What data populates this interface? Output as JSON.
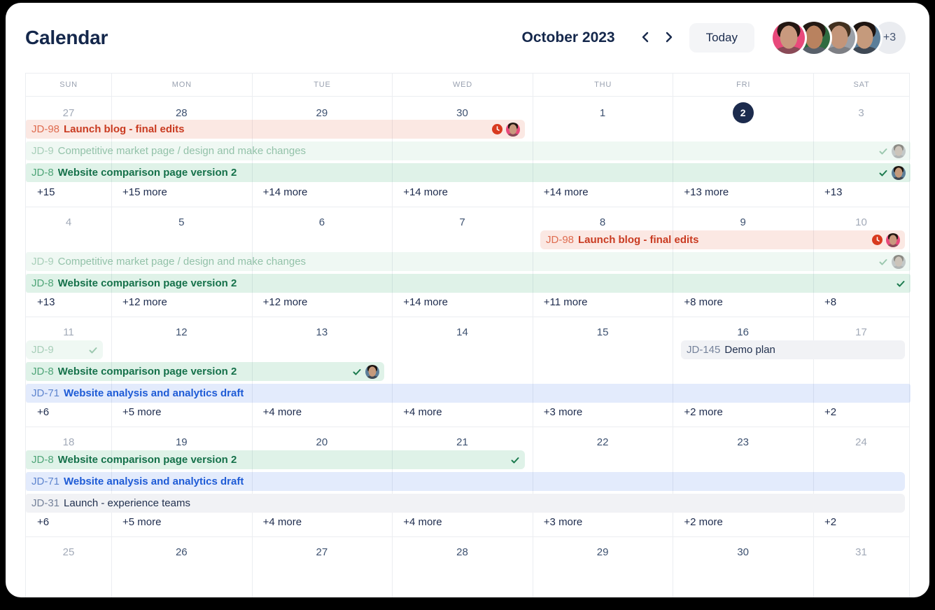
{
  "window": {
    "title": "Calendar"
  },
  "header": {
    "month_label": "October 2023",
    "prev_icon": "chevron-left",
    "next_icon": "chevron-right",
    "today_label": "Today",
    "avatars": [
      {
        "name": "avatar-1",
        "bg": "#E8497B",
        "skin": "#C9997E",
        "hair": "#231712",
        "shirt": "#8a4a57"
      },
      {
        "name": "avatar-2",
        "bg": "#2F6B40",
        "skin": "#B9825F",
        "hair": "#241A14",
        "shirt": "#58606a"
      },
      {
        "name": "avatar-3",
        "bg": "#9AA0A8",
        "skin": "#C39579",
        "hair": "#41301f",
        "shirt": "#7d7f84"
      },
      {
        "name": "avatar-4",
        "bg": "#5B7E99",
        "skin": "#C59A7C",
        "hair": "#1E1511",
        "shirt": "#3e4854"
      }
    ],
    "overflow_badge": "+3"
  },
  "day_headers": [
    "SUN",
    "MON",
    "TUE",
    "WED",
    "THU",
    "FRI",
    "SAT"
  ],
  "event_styles": {
    "red": {
      "bg": "rgba(224,62,26,0.12)",
      "key": "#DF6C50",
      "title": "#C93B21"
    },
    "green": {
      "bg": "rgba(28,160,89,0.14)",
      "key": "#4FA578",
      "title": "#15714A"
    },
    "green_faded": {
      "bg": "rgba(28,160,89,0.07)",
      "key": "#A8CFB9",
      "title": "#93C2A9"
    },
    "blue": {
      "bg": "rgba(37,99,235,0.13)",
      "key": "#5F86CF",
      "title": "#1E5BD6"
    },
    "gray": {
      "bg": "#F1F2F5",
      "key": "#76839B",
      "title": "#22314F"
    }
  },
  "status_colors": {
    "check": "#1B7A4E",
    "check_faded": "#9CC8AF",
    "overdue": "#D83A1F",
    "today_bg": "#1C2B4D"
  },
  "weeks": [
    {
      "dates": [
        {
          "label": "27",
          "muted": true
        },
        {
          "label": "28"
        },
        {
          "label": "29"
        },
        {
          "label": "30"
        },
        {
          "label": "1"
        },
        {
          "label": "2",
          "today": true
        },
        {
          "label": "3",
          "muted": true
        }
      ],
      "events": [
        {
          "slot": 0,
          "start": 1,
          "end": 4,
          "variant": "red",
          "key": "JD-98",
          "title": "Launch blog - final edits",
          "round_left": false,
          "round_right": true,
          "icons": [
            "overdue-clock",
            "avatar-pink"
          ]
        },
        {
          "slot": 1,
          "start": 1,
          "end": 7,
          "variant": "green_faded",
          "key": "JD-9",
          "title": "Competitive market page / design and make changes",
          "round_left": false,
          "round_right": false,
          "icons": [
            "check-faded",
            "avatar-faded"
          ]
        },
        {
          "slot": 2,
          "start": 1,
          "end": 7,
          "variant": "green",
          "key": "JD-8",
          "title": "Website comparison page version 2",
          "round_left": false,
          "round_right": false,
          "icons": [
            "check",
            "avatar-slate"
          ]
        }
      ],
      "more": [
        "+15",
        "+15 more",
        "+14 more",
        "+14 more",
        "+14 more",
        "+13 more",
        "+13"
      ]
    },
    {
      "dates": [
        {
          "label": "4",
          "muted": true
        },
        {
          "label": "5"
        },
        {
          "label": "6"
        },
        {
          "label": "7"
        },
        {
          "label": "8"
        },
        {
          "label": "9"
        },
        {
          "label": "10",
          "muted": true
        }
      ],
      "events": [
        {
          "slot": 0,
          "start": 5,
          "end": 7,
          "variant": "red",
          "key": "JD-98",
          "title": "Launch blog - final edits",
          "round_left": true,
          "round_right": true,
          "icons": [
            "overdue-clock",
            "avatar-pink"
          ]
        },
        {
          "slot": 1,
          "start": 1,
          "end": 7,
          "variant": "green_faded",
          "key": "JD-9",
          "title": "Competitive market page / design and make changes",
          "round_left": false,
          "round_right": false,
          "icons": [
            "check-faded",
            "avatar-faded"
          ]
        },
        {
          "slot": 2,
          "start": 1,
          "end": 7,
          "variant": "green",
          "key": "JD-8",
          "title": "Website comparison page version 2",
          "round_left": false,
          "round_right": false,
          "icons": [
            "check"
          ]
        }
      ],
      "more": [
        "+13",
        "+12 more",
        "+12 more",
        "+14 more",
        "+11 more",
        "+8 more",
        "+8"
      ]
    },
    {
      "dates": [
        {
          "label": "11",
          "muted": true
        },
        {
          "label": "12"
        },
        {
          "label": "13"
        },
        {
          "label": "14"
        },
        {
          "label": "15"
        },
        {
          "label": "16"
        },
        {
          "label": "17",
          "muted": true
        }
      ],
      "events": [
        {
          "slot": 0,
          "start": 1,
          "end": 1,
          "variant": "green_faded",
          "key": "JD-9",
          "title": "",
          "round_left": true,
          "round_right": true,
          "icons": [
            "check-faded"
          ]
        },
        {
          "slot": 0,
          "start": 6,
          "end": 7,
          "variant": "gray",
          "key": "JD-145",
          "title": "Demo plan",
          "round_left": true,
          "round_right": true,
          "icons": []
        },
        {
          "slot": 1,
          "start": 1,
          "end": 3,
          "variant": "green",
          "key": "JD-8",
          "title": "Website comparison page version 2",
          "round_left": false,
          "round_right": true,
          "icons": [
            "check",
            "avatar-slate"
          ]
        },
        {
          "slot": 2,
          "start": 1,
          "end": 7,
          "variant": "blue",
          "key": "JD-71",
          "title": "Website analysis and analytics draft",
          "round_left": false,
          "round_right": false,
          "icons": []
        }
      ],
      "more": [
        "+6",
        "+5 more",
        "+4 more",
        "+4 more",
        "+3 more",
        "+2 more",
        "+2"
      ]
    },
    {
      "dates": [
        {
          "label": "18",
          "muted": true
        },
        {
          "label": "19"
        },
        {
          "label": "20"
        },
        {
          "label": "21"
        },
        {
          "label": "22"
        },
        {
          "label": "23"
        },
        {
          "label": "24",
          "muted": true
        }
      ],
      "events": [
        {
          "slot": 0,
          "start": 1,
          "end": 4,
          "variant": "green",
          "key": "JD-8",
          "title": "Website comparison page version 2",
          "round_left": false,
          "round_right": true,
          "icons": [
            "check"
          ]
        },
        {
          "slot": 1,
          "start": 1,
          "end": 7,
          "variant": "blue",
          "key": "JD-71",
          "title": "Website analysis and analytics draft",
          "round_left": false,
          "round_right": true,
          "icons": []
        },
        {
          "slot": 2,
          "start": 1,
          "end": 7,
          "variant": "gray",
          "key": "JD-31",
          "title": "Launch - experience teams",
          "round_left": false,
          "round_right": true,
          "icons": []
        }
      ],
      "more": [
        "+6",
        "+5 more",
        "+4 more",
        "+4 more",
        "+3 more",
        "+2 more",
        "+2"
      ]
    },
    {
      "dates": [
        {
          "label": "25",
          "muted": true
        },
        {
          "label": "26"
        },
        {
          "label": "27"
        },
        {
          "label": "28"
        },
        {
          "label": "29"
        },
        {
          "label": "30"
        },
        {
          "label": "31",
          "muted": true
        }
      ],
      "events": [],
      "more": []
    }
  ]
}
